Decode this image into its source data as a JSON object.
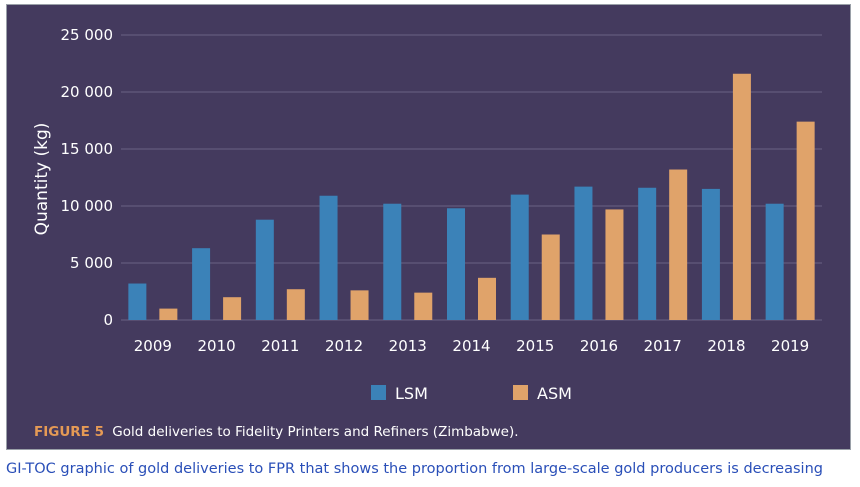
{
  "chart_data": {
    "type": "bar",
    "ylabel": "Quantity (kg)",
    "xlabel": "",
    "ylim": [
      0,
      25000
    ],
    "yticks": [
      0,
      5000,
      10000,
      15000,
      20000,
      25000
    ],
    "ytick_labels": [
      "0",
      "5 000",
      "10 000",
      "15 000",
      "20 000",
      "25 000"
    ],
    "categories": [
      "2009",
      "2010",
      "2011",
      "2012",
      "2013",
      "2014",
      "2015",
      "2016",
      "2017",
      "2018",
      "2019"
    ],
    "series": [
      {
        "name": "LSM",
        "color": "#3b82b8",
        "values": [
          3200,
          6300,
          8800,
          10900,
          10200,
          9800,
          11000,
          11700,
          11600,
          11500,
          10200
        ]
      },
      {
        "name": "ASM",
        "color": "#e0a36a",
        "values": [
          1000,
          2000,
          2700,
          2600,
          2400,
          3700,
          7500,
          9700,
          13200,
          21600,
          17400
        ]
      }
    ],
    "grid": true,
    "legend_position": "bottom-center"
  },
  "figure_caption": {
    "label": "FIGURE 5",
    "text": "Gold deliveries to Fidelity Printers and Refiners (Zimbabwe)."
  },
  "outer_caption": "GI-TOC graphic of gold deliveries to FPR that shows the proportion from large-scale gold producers is decreasing",
  "colors": {
    "background": "#443a5e",
    "grid": "#6a6284",
    "text": "#ffffff",
    "figure_label": "#e59a55",
    "outer_caption": "#2a4fb8"
  }
}
